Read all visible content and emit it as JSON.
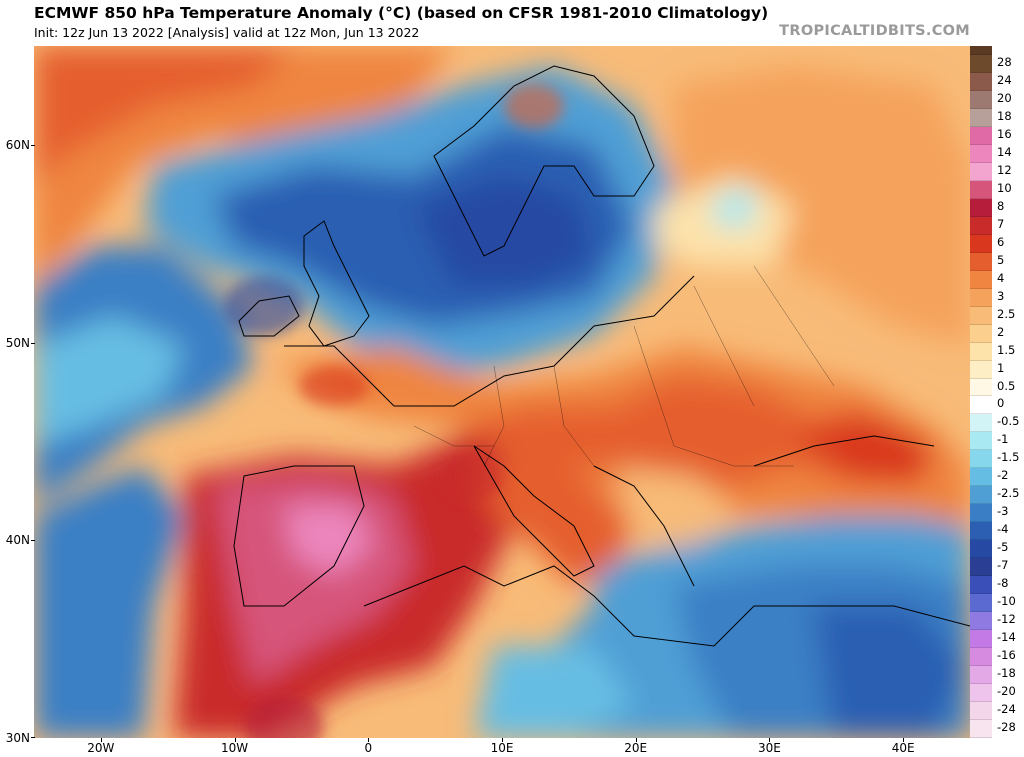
{
  "title": "ECMWF 850 hPa Temperature Anomaly (°C) (based on CFSR 1981-2010 Climatology)",
  "subtitle": "Init: 12z Jun 13 2022  [Analysis]   valid at 12z Mon, Jun 13 2022",
  "brand": "TROPICALTIDBITS.COM",
  "y_axis": [
    {
      "label": "60N",
      "lat": 60
    },
    {
      "label": "50N",
      "lat": 50
    },
    {
      "label": "40N",
      "lat": 40
    },
    {
      "label": "30N",
      "lat": 30
    }
  ],
  "x_axis": [
    {
      "label": "20W",
      "lon": -20
    },
    {
      "label": "10W",
      "lon": -10
    },
    {
      "label": "0",
      "lon": 0
    },
    {
      "label": "10E",
      "lon": 10
    },
    {
      "label": "20E",
      "lon": 20
    },
    {
      "label": "30E",
      "lon": 30
    },
    {
      "label": "40E",
      "lon": 40
    }
  ],
  "colorbar": {
    "labels": [
      "28",
      "24",
      "20",
      "18",
      "16",
      "14",
      "12",
      "10",
      "8",
      "7",
      "6",
      "5",
      "4",
      "3",
      "2.5",
      "2",
      "1.5",
      "1",
      "0.5",
      "0",
      "-0.5",
      "-1",
      "-1.5",
      "-2",
      "-2.5",
      "-3",
      "-4",
      "-5",
      "-7",
      "-8",
      "-10",
      "-12",
      "-14",
      "-16",
      "-18",
      "-20",
      "-24",
      "-28"
    ],
    "colors": [
      "#6e4a2c",
      "#8b5a4a",
      "#9c7a72",
      "#b7a09a",
      "#e06aa6",
      "#ec86bd",
      "#f3a5cf",
      "#d6557a",
      "#b51d3a",
      "#c92a2a",
      "#d9381e",
      "#e55e2e",
      "#ef8540",
      "#f5a35c",
      "#f8bb78",
      "#fbd08f",
      "#fde2aa",
      "#feeec6",
      "#fff8e4",
      "#ffffff",
      "#d2f4f7",
      "#a8e9f2",
      "#86d6ec",
      "#66bde3",
      "#4f9fd5",
      "#3a7fc5",
      "#2c5fb2",
      "#264aa3",
      "#2a3f93",
      "#3b4fb8",
      "#5b6ad0",
      "#8e7ae0",
      "#c47ae6",
      "#d68be0",
      "#e3a8e6",
      "#eec4ec",
      "#f3d6ea",
      "#f8e4ee"
    ]
  },
  "map_data": {
    "variable": "850 hPa Temperature Anomaly",
    "units": "°C",
    "lon_range": [
      -25,
      45
    ],
    "lat_range": [
      30,
      65
    ]
  }
}
